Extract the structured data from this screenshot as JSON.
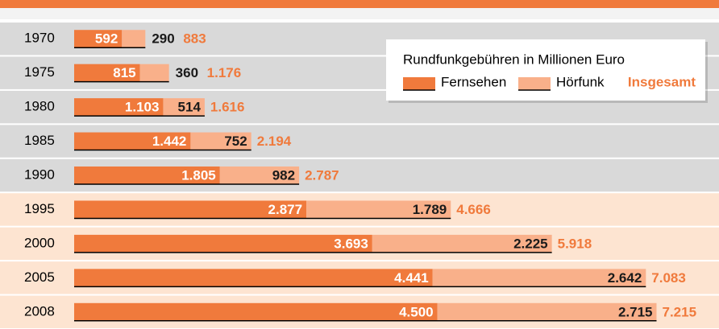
{
  "chart_data": {
    "type": "stacked-bar-horizontal",
    "categories": [
      "1970",
      "1975",
      "1980",
      "1985",
      "1990",
      "1995",
      "2000",
      "2005",
      "2008"
    ],
    "series": [
      {
        "name": "Fernsehen",
        "color": "#f07a3c",
        "values": [
          592,
          815,
          1103,
          1442,
          1805,
          2877,
          3693,
          4441,
          4500
        ],
        "value_labels": [
          "592",
          "815",
          "1.103",
          "1.442",
          "1.805",
          "2.877",
          "3.693",
          "4.441",
          "4.500"
        ]
      },
      {
        "name": "Hörfunk",
        "color": "#f9b08a",
        "values": [
          290,
          360,
          514,
          752,
          982,
          1789,
          2225,
          2642,
          2715
        ],
        "value_labels": [
          "290",
          "360",
          "514",
          "752",
          "982",
          "1.789",
          "2.225",
          "2.642",
          "2.715"
        ]
      }
    ],
    "totals": {
      "name": "Insgesamt",
      "color": "#f07a3c",
      "values": [
        883,
        1176,
        1616,
        2194,
        2787,
        4666,
        5918,
        7083,
        7215
      ],
      "value_labels": [
        "883",
        "1.176",
        "1.616",
        "2.194",
        "2.787",
        "4.666",
        "5.918",
        "7.083",
        "7.215"
      ]
    },
    "legend_title": "Rundfunkgebühren in Millionen Euro",
    "legend_position": "upper right",
    "xlim": [
      0,
      7200
    ]
  }
}
